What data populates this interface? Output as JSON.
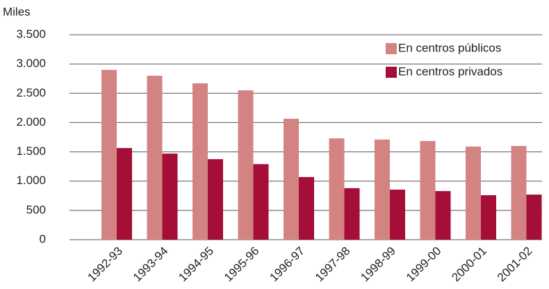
{
  "chart_data": {
    "type": "bar",
    "y_label": "Miles",
    "categories": [
      "1992-93",
      "1993-94",
      "1994-95",
      "1995-96",
      "1996-97",
      "1997-98",
      "1998-99",
      "1999-00",
      "2000-01",
      "2001-02"
    ],
    "series": [
      {
        "name": "En centros públicos",
        "color": "#d48383",
        "values": [
          2900,
          2800,
          2670,
          2550,
          2065,
          1730,
          1710,
          1685,
          1590,
          1600
        ]
      },
      {
        "name": "En centros privados",
        "color": "#a50e36",
        "values": [
          1565,
          1470,
          1375,
          1290,
          1070,
          880,
          855,
          830,
          760,
          770
        ]
      }
    ],
    "ylim": [
      0,
      3500
    ],
    "yticks": [
      0,
      500,
      {
        "value": 1000,
        "label": "1.000"
      },
      {
        "value": 1500,
        "label": "1.500"
      },
      {
        "value": 2000,
        "label": "2.000"
      },
      {
        "value": 2500,
        "label": "2.500"
      },
      {
        "value": 3000,
        "label": "3.000"
      },
      {
        "value": 3500,
        "label": "3.500"
      }
    ],
    "grid": true,
    "legend": "top-right"
  }
}
